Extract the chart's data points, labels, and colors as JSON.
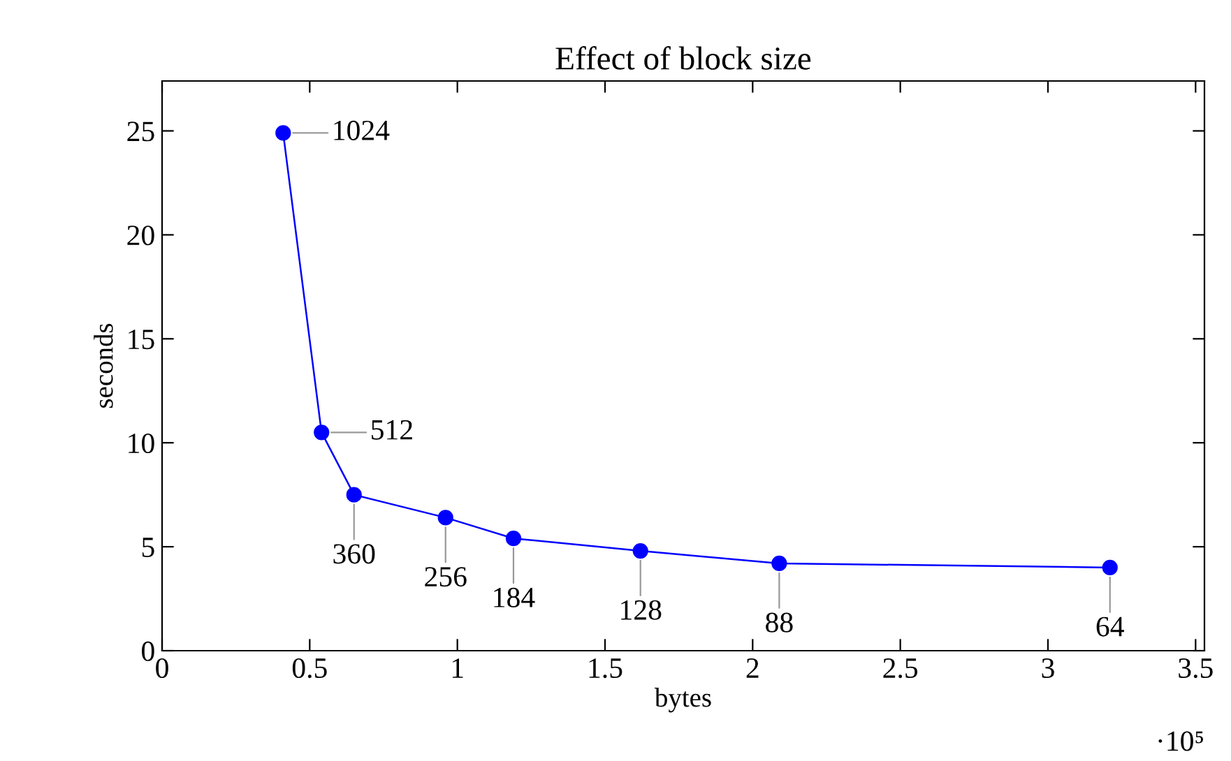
{
  "chart_data": {
    "type": "line",
    "title": "Effect of block size",
    "xlabel": "bytes",
    "ylabel": "seconds",
    "x": [
      0.41,
      0.54,
      0.65,
      0.96,
      1.19,
      1.62,
      2.09,
      3.21
    ],
    "series": [
      {
        "color": "#0000ff",
        "values": [
          24.9,
          10.5,
          7.5,
          6.4,
          5.4,
          4.8,
          4.2,
          4.0
        ]
      }
    ],
    "marker": "circle",
    "line_style": "solid",
    "grid": false,
    "xlim": [
      0,
      3.53
    ],
    "xticks": [
      0,
      0.5,
      1,
      1.5,
      2,
      2.5,
      3,
      3.5
    ],
    "ylim": [
      0,
      27.4
    ],
    "yticks": [
      0,
      5,
      10,
      15,
      20,
      25
    ],
    "annotations": [
      {
        "text": "1024",
        "x": 0.41,
        "y": 24.9
      },
      {
        "text": "512",
        "x": 0.54,
        "y": 10.5
      },
      {
        "text": "360",
        "x": 0.65,
        "y": 7.5
      },
      {
        "text": "256",
        "x": 0.96,
        "y": 6.4
      },
      {
        "text": "184",
        "x": 1.19,
        "y": 5.4
      },
      {
        "text": "128",
        "x": 1.62,
        "y": 4.8
      },
      {
        "text": "88",
        "x": 2.09,
        "y": 4.2
      },
      {
        "text": "64",
        "x": 3.21,
        "y": 4.0
      },
      "·10⁵"
    ]
  }
}
